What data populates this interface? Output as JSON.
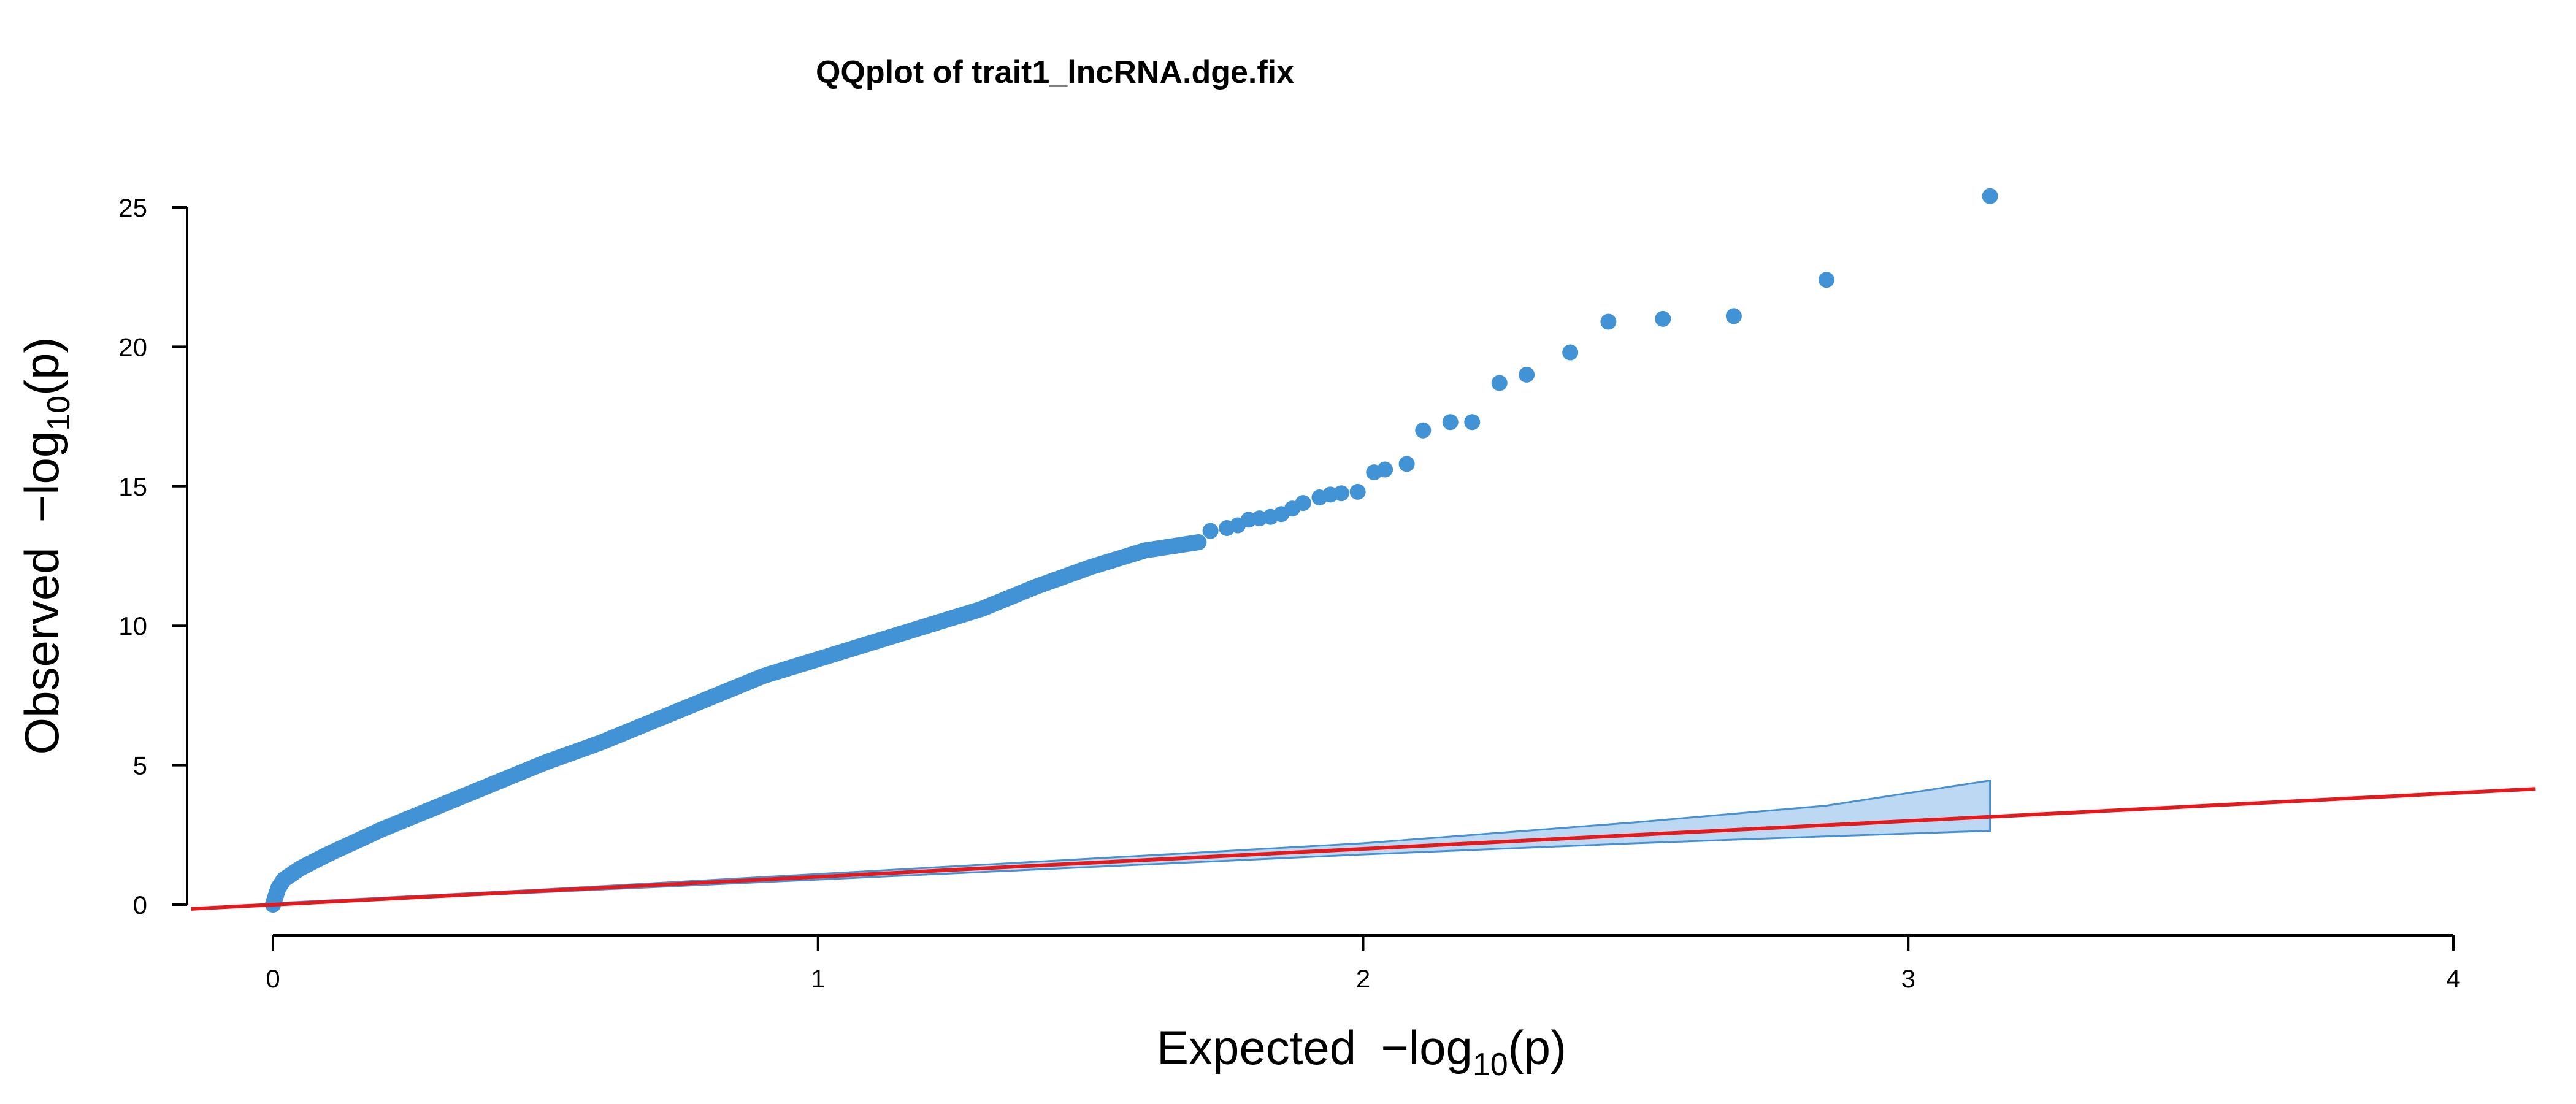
{
  "chart_data": {
    "type": "scatter",
    "title": "QQplot of trait1_lncRNA.dge.fix",
    "xlabel": {
      "prefix": "Expected",
      "expr_main": "−log",
      "expr_sub": "10",
      "expr_tail": "(p)"
    },
    "ylabel": {
      "prefix": "Observed",
      "expr_main": "−log",
      "expr_sub": "10",
      "expr_tail": "(p)"
    },
    "xlim": [
      0,
      4
    ],
    "ylim": [
      0,
      25
    ],
    "xticks": [
      "0",
      "1",
      "2",
      "3",
      "4"
    ],
    "yticks": [
      "0",
      "5",
      "10",
      "15",
      "20",
      "25"
    ],
    "point_color": "#4292d6",
    "band_fill": "#bcd8f2",
    "band_stroke": "#4a90d0",
    "line_color": "#e41a1c",
    "reference_line": {
      "slope": 1,
      "intercept": 0
    },
    "confidence_band": {
      "x": [
        0,
        0.5,
        1.0,
        1.5,
        2.0,
        2.5,
        2.85,
        3.15
      ],
      "upper": [
        0.05,
        0.55,
        1.1,
        1.65,
        2.2,
        2.95,
        3.55,
        4.45
      ],
      "lower": [
        0.0,
        0.45,
        0.9,
        1.35,
        1.8,
        2.2,
        2.45,
        2.65
      ]
    },
    "observed_curve": {
      "x": [
        0,
        0.005,
        0.01,
        0.02,
        0.05,
        0.1,
        0.2,
        0.3,
        0.4,
        0.5,
        0.6,
        0.7,
        0.8,
        0.9,
        1.0,
        1.1,
        1.2,
        1.3,
        1.4,
        1.5,
        1.6,
        1.7
      ],
      "y": [
        0.0,
        0.3,
        0.6,
        0.9,
        1.3,
        1.8,
        2.7,
        3.5,
        4.3,
        5.1,
        5.8,
        6.6,
        7.4,
        8.2,
        8.8,
        9.4,
        10.0,
        10.6,
        11.4,
        12.1,
        12.7,
        13.0
      ]
    },
    "tail_points": {
      "x": [
        1.72,
        1.75,
        1.77,
        1.79,
        1.81,
        1.83,
        1.85,
        1.87,
        1.89,
        1.92,
        1.94,
        1.96,
        1.99,
        2.02,
        2.04,
        2.08,
        2.11,
        2.16,
        2.2,
        2.25,
        2.3,
        2.38,
        2.45,
        2.55,
        2.68,
        2.85,
        3.15
      ],
      "y": [
        13.4,
        13.5,
        13.6,
        13.8,
        13.85,
        13.9,
        14.0,
        14.2,
        14.4,
        14.6,
        14.7,
        14.75,
        14.8,
        15.5,
        15.6,
        15.8,
        17.0,
        17.3,
        17.3,
        18.7,
        19.0,
        19.8,
        20.9,
        21.0,
        21.1,
        22.4,
        25.4
      ]
    }
  }
}
